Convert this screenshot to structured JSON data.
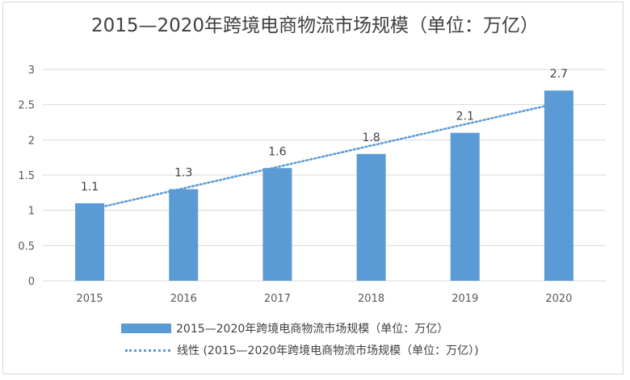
{
  "chart_data": {
    "type": "bar",
    "title": "2015—2020年跨境电商物流市场规模（单位：万亿）",
    "categories": [
      "2015",
      "2016",
      "2017",
      "2018",
      "2019",
      "2020"
    ],
    "series": [
      {
        "name": "2015—2020年跨境电商物流市场规模（单位：万亿）",
        "values": [
          1.1,
          1.3,
          1.6,
          1.8,
          2.1,
          2.7
        ]
      }
    ],
    "data_labels": [
      "1.1",
      "1.3",
      "1.6",
      "1.8",
      "2.1",
      "2.7"
    ],
    "y_ticks": [
      "0",
      "0.5",
      "1",
      "1.5",
      "2",
      "2.5",
      "3"
    ],
    "ylim": [
      0,
      3
    ],
    "grid": true,
    "trendline": {
      "type": "linear",
      "name": "线性 (2015—2020年跨境电商物流市场规模（单位：万亿）)"
    },
    "legend_position": "bottom",
    "colors": {
      "bar": "#5b9bd5",
      "trendline": "#5b9bd5",
      "grid": "#d9d9d9",
      "text": "#595959"
    }
  }
}
